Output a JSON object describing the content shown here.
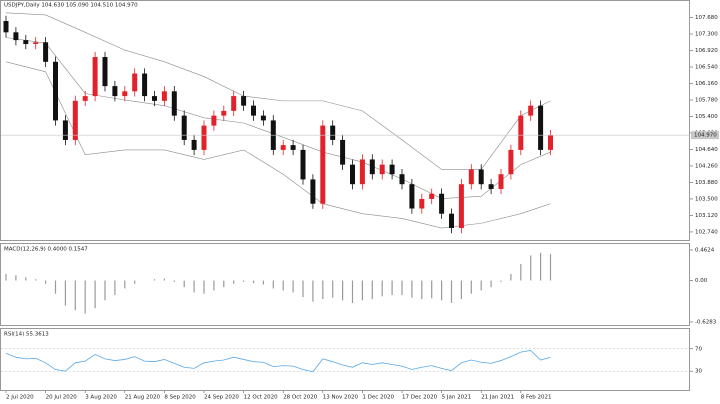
{
  "chart_data": [
    {
      "type": "candlestick",
      "title": "USDJPY,Daily 104.630 105.090 104.510 104.970",
      "categories": [
        "2 Jul 2020",
        null,
        null,
        null,
        "20 Jul 2020",
        null,
        null,
        null,
        "3 Aug 2020",
        null,
        null,
        null,
        "21 Aug 2020",
        null,
        null,
        null,
        "8 Sep 2020",
        null,
        null,
        null,
        "24 Sep 2020",
        null,
        null,
        null,
        "12 Oct 2020",
        null,
        null,
        null,
        "28 Oct 2020",
        null,
        null,
        null,
        "13 Nov 2020",
        null,
        null,
        null,
        "1 Dec 2020",
        null,
        null,
        null,
        "17 Dec 2020",
        null,
        null,
        null,
        "5 Jan 2021",
        null,
        null,
        null,
        "21 Jan 2021",
        null,
        null,
        null,
        "8 Feb 2021",
        null,
        null,
        null
      ],
      "open": [
        107.6,
        107.34,
        107.16,
        107.07,
        107.11,
        106.66,
        105.31,
        104.86,
        105.76,
        105.87,
        106.77,
        106.1,
        105.87,
        105.98,
        106.39,
        105.87,
        105.76,
        105.98,
        105.42,
        104.86,
        104.63,
        105.19,
        105.42,
        105.53,
        105.87,
        105.65,
        105.42,
        105.31,
        104.63,
        104.74,
        104.63,
        103.95,
        103.39,
        105.19,
        104.86,
        104.29,
        103.84,
        104.41,
        104.07,
        104.29,
        104.07,
        103.84,
        103.28,
        103.5,
        103.62,
        103.16,
        102.83,
        103.84,
        104.18,
        103.84,
        103.73,
        104.07,
        104.63,
        105.42,
        105.65,
        104.63
      ],
      "high": [
        107.72,
        107.46,
        107.28,
        107.23,
        107.23,
        106.78,
        105.43,
        105.88,
        105.99,
        106.89,
        106.89,
        106.22,
        106.1,
        106.51,
        106.51,
        105.99,
        106.1,
        106.1,
        105.54,
        104.98,
        105.31,
        105.54,
        105.65,
        105.99,
        105.99,
        105.77,
        105.54,
        105.43,
        104.86,
        104.86,
        104.75,
        104.07,
        105.31,
        105.31,
        104.98,
        104.41,
        104.53,
        104.53,
        104.41,
        104.41,
        104.19,
        103.96,
        103.62,
        103.74,
        103.74,
        103.28,
        103.96,
        104.3,
        104.3,
        103.96,
        104.19,
        104.75,
        105.54,
        105.77,
        105.77,
        105.09
      ],
      "low": [
        107.22,
        107.04,
        106.95,
        106.95,
        106.54,
        105.19,
        104.74,
        104.74,
        105.64,
        105.75,
        105.98,
        105.75,
        105.75,
        105.86,
        105.75,
        105.64,
        105.64,
        105.3,
        104.74,
        104.51,
        104.51,
        105.07,
        105.3,
        105.41,
        105.53,
        105.3,
        105.19,
        104.51,
        104.51,
        104.51,
        103.83,
        103.27,
        103.27,
        104.74,
        104.17,
        103.72,
        103.72,
        103.95,
        103.95,
        103.95,
        103.72,
        103.16,
        103.16,
        103.38,
        103.04,
        102.71,
        102.71,
        103.72,
        103.72,
        103.61,
        103.61,
        103.95,
        104.51,
        105.3,
        104.51,
        104.51
      ],
      "close": [
        107.34,
        107.16,
        107.07,
        107.11,
        106.66,
        105.31,
        104.86,
        105.76,
        105.87,
        106.77,
        106.1,
        105.87,
        105.98,
        106.39,
        105.87,
        105.76,
        105.98,
        105.42,
        104.86,
        104.63,
        105.19,
        105.42,
        105.53,
        105.87,
        105.65,
        105.42,
        105.31,
        104.63,
        104.74,
        104.63,
        103.95,
        103.39,
        105.19,
        104.86,
        104.29,
        103.84,
        104.41,
        104.07,
        104.29,
        104.07,
        103.84,
        103.28,
        103.5,
        103.62,
        103.16,
        102.83,
        103.84,
        104.18,
        103.84,
        103.73,
        104.07,
        104.63,
        105.42,
        105.65,
        104.63,
        104.97
      ],
      "bands": {
        "x": [
          0,
          4,
          8,
          12,
          16,
          20,
          24,
          28,
          32,
          36,
          40,
          44,
          48,
          52,
          55
        ],
        "upper": [
          107.79,
          107.74,
          107.34,
          106.93,
          106.66,
          106.32,
          105.87,
          105.76,
          105.76,
          105.53,
          104.86,
          104.18,
          104.18,
          105.42,
          105.76
        ],
        "middle": [
          107.22,
          107.09,
          105.93,
          105.78,
          105.65,
          105.37,
          105.25,
          104.92,
          104.58,
          104.35,
          103.96,
          103.51,
          103.56,
          104.29,
          104.58
        ],
        "lower": [
          106.66,
          106.43,
          104.52,
          104.63,
          104.63,
          104.41,
          104.63,
          104.07,
          103.39,
          103.16,
          103.05,
          102.83,
          102.94,
          103.16,
          103.39
        ]
      },
      "last_price": 104.97,
      "last_price_label": "104.970",
      "up_color": "#e3212a",
      "down_color": "#111111",
      "band_color": "#8a8a8a",
      "ylim": [
        102.6,
        107.9
      ],
      "yticks": [
        {
          "value": 107.68,
          "label": "107.680"
        },
        {
          "value": 107.3,
          "label": "107.300"
        },
        {
          "value": 106.92,
          "label": "106.920"
        },
        {
          "value": 106.54,
          "label": "106.540"
        },
        {
          "value": 106.16,
          "label": "106.160"
        },
        {
          "value": 105.78,
          "label": "105.780"
        },
        {
          "value": 105.4,
          "label": "105.400"
        },
        {
          "value": 105.02,
          "label": "105.020"
        },
        {
          "value": 104.64,
          "label": "104.640"
        },
        {
          "value": 104.26,
          "label": "104.260"
        },
        {
          "value": 103.88,
          "label": "103.880"
        },
        {
          "value": 103.5,
          "label": "103.500"
        },
        {
          "value": 103.12,
          "label": "103.120"
        },
        {
          "value": 102.74,
          "label": "102.740"
        }
      ]
    },
    {
      "type": "bar",
      "title": "MACD(12,26,9) 0.4000 0.1547",
      "values": [
        0.1,
        0.08,
        0.05,
        0.02,
        -0.05,
        -0.2,
        -0.38,
        -0.45,
        -0.5,
        -0.42,
        -0.3,
        -0.22,
        -0.12,
        -0.05,
        0.0,
        0.02,
        0.03,
        -0.02,
        -0.1,
        -0.18,
        -0.2,
        -0.15,
        -0.1,
        -0.05,
        -0.02,
        -0.04,
        -0.06,
        -0.12,
        -0.15,
        -0.18,
        -0.25,
        -0.32,
        -0.28,
        -0.26,
        -0.3,
        -0.34,
        -0.3,
        -0.28,
        -0.24,
        -0.22,
        -0.22,
        -0.26,
        -0.28,
        -0.27,
        -0.3,
        -0.34,
        -0.28,
        -0.2,
        -0.15,
        -0.1,
        -0.02,
        0.1,
        0.25,
        0.38,
        0.42,
        0.4
      ],
      "color": "#9a9a9a",
      "ylim": [
        -0.6283,
        0.4624
      ],
      "yticks": [
        0.4624,
        {
          "value": 0,
          "label": "0.00"
        },
        -0.6283
      ]
    },
    {
      "type": "line",
      "title": "RSI(14) 55.3613",
      "values": [
        62,
        55,
        52,
        53,
        45,
        33,
        30,
        45,
        48,
        60,
        52,
        49,
        51,
        56,
        48,
        47,
        51,
        44,
        37,
        35,
        45,
        48,
        50,
        55,
        51,
        47,
        46,
        38,
        40,
        39,
        33,
        29,
        52,
        47,
        41,
        37,
        45,
        42,
        45,
        42,
        39,
        33,
        37,
        40,
        35,
        31,
        45,
        50,
        46,
        44,
        49,
        56,
        64,
        67,
        50,
        55
      ],
      "color": "#5aa9e6",
      "ylim": [
        0,
        100
      ],
      "yticks": [
        30,
        70
      ]
    }
  ]
}
